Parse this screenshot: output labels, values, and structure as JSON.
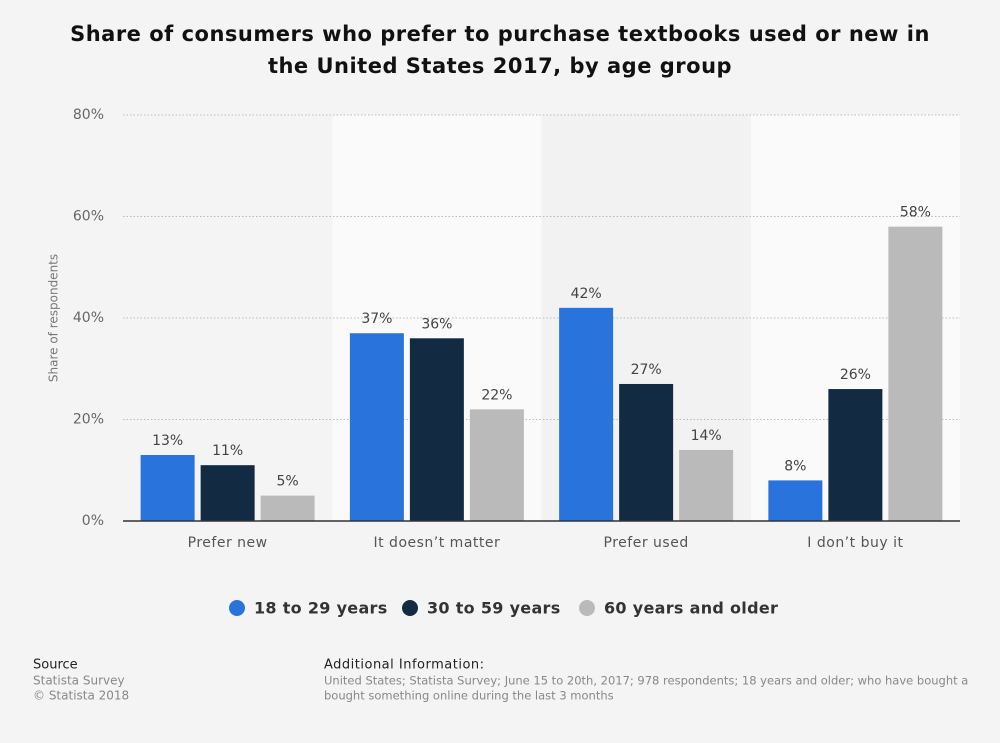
{
  "chart_data": {
    "type": "bar",
    "title": [
      "Share of consumers who prefer to purchase textbooks used or new in",
      "the United States 2017, by age group"
    ],
    "y_label": "Share of respondents",
    "categories": [
      "Prefer new",
      "It doesn’t matter",
      "Prefer used",
      "I don’t buy it"
    ],
    "series": [
      {
        "name": "18 to 29 years",
        "color": "#2874dc",
        "values": [
          13,
          37,
          42,
          8
        ],
        "value_labels": [
          "13%",
          "37%",
          "42%",
          "8%"
        ]
      },
      {
        "name": "30 to 59 years",
        "color": "#132a43",
        "values": [
          11,
          36,
          27,
          26
        ],
        "value_labels": [
          "11%",
          "36%",
          "27%",
          "26%"
        ]
      },
      {
        "name": "60 years and older",
        "color": "#bababa",
        "values": [
          5,
          22,
          14,
          58
        ],
        "value_labels": [
          "5%",
          "22%",
          "14%",
          "58%"
        ]
      }
    ],
    "ylim": [
      0,
      80
    ],
    "yticks": [
      {
        "value": 0,
        "label": "0%"
      },
      {
        "value": 20,
        "label": "20%"
      },
      {
        "value": 40,
        "label": "40%"
      },
      {
        "value": 60,
        "label": "60%"
      },
      {
        "value": 80,
        "label": "80%"
      }
    ],
    "grid": true,
    "legend": "bottom"
  },
  "footer": {
    "source_heading": "Source",
    "source_lines": [
      "Statista Survey",
      "© Statista 2018"
    ],
    "info_heading": "Additional Information:",
    "info_lines": [
      "United States; Statista Survey; June 15 to 20th, 2017; 978 respondents; 18 years and older; who have bought a",
      "bought something online during the last 3 months"
    ]
  }
}
